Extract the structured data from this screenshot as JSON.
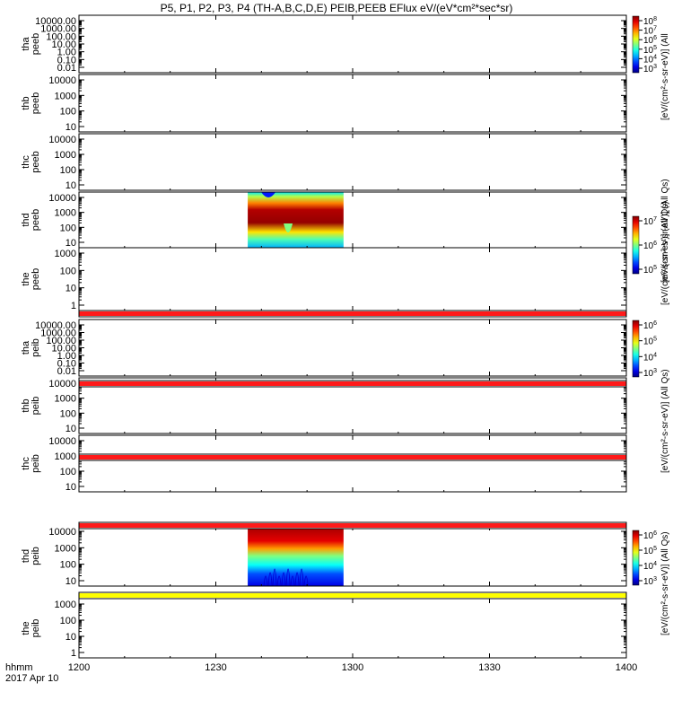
{
  "title": "P5, P1, P2, P3, P4 (TH-A,B,C,D,E) PEIB,PEEB EFlux eV/(eV*cm²*sec*sr)",
  "footer": {
    "line1": "hhmm",
    "line2": "2017 Apr 10"
  },
  "colorbar_labels": [
    "[eV/(cm²-s-sr-eV)] (All",
    "[eV/(cm²-s-sr-eV)] (All Qs)",
    "[eV/(cm²-s-sr-eV)] (All Qs)",
    "[eV/(cm²-s-sr-eV)] (All Qs)",
    "[eV/(cm²-s-sr-eV)] (All Qs)"
  ],
  "chart_data": {
    "type": "heatmap",
    "x": {
      "label": "hhmm",
      "range": [
        "1200",
        "1400"
      ],
      "ticks": [
        "1200",
        "1230",
        "1300",
        "1330",
        "1400"
      ]
    },
    "panels": [
      {
        "name": [
          "tha",
          "peeb"
        ],
        "yticks": [
          "10000.00",
          "1000.00",
          "100.00",
          "10.00",
          "1.00",
          "0.10",
          "0.01"
        ],
        "ylog": true,
        "data_interval": null
      },
      {
        "name": [
          "thb",
          "peeb"
        ],
        "yticks": [
          "10000",
          "1000",
          "100",
          "10"
        ],
        "ylog": true,
        "data_interval": null
      },
      {
        "name": [
          "thc",
          "peeb"
        ],
        "yticks": [
          "10000",
          "1000",
          "100",
          "10"
        ],
        "ylog": true,
        "data_interval": null
      },
      {
        "name": [
          "thd",
          "peeb"
        ],
        "yticks": [
          "10000",
          "1000",
          "100",
          "10"
        ],
        "ylog": true,
        "data_interval": [
          "1237",
          "1258"
        ]
      },
      {
        "name": [
          "the",
          "peeb"
        ],
        "yticks": [
          "1000",
          "100",
          "10",
          "1"
        ],
        "ylog": true,
        "data_interval": null
      },
      {
        "name": [
          "tha",
          "peib"
        ],
        "yticks": [
          "10000.00",
          "1000.00",
          "100.00",
          "10.00",
          "1.00",
          "0.10",
          "0.01"
        ],
        "ylog": true,
        "data_interval": null
      },
      {
        "name": [
          "thb",
          "peib"
        ],
        "yticks": [
          "10000",
          "1000",
          "100",
          "10"
        ],
        "ylog": true,
        "data_interval": null
      },
      {
        "name": [
          "thc",
          "peib"
        ],
        "yticks": [
          "10000",
          "1000",
          "100",
          "10"
        ],
        "ylog": true,
        "data_interval": null
      },
      {
        "name": [
          "thd",
          "peib"
        ],
        "yticks": [
          "10000",
          "1000",
          "100",
          "10"
        ],
        "ylog": true,
        "data_interval": [
          "1237",
          "1258"
        ]
      },
      {
        "name": [
          "the",
          "peib"
        ],
        "yticks": [
          "1000",
          "100",
          "10",
          "1"
        ],
        "ylog": true,
        "data_interval": null
      }
    ],
    "colorbars": [
      {
        "panels": [
          0,
          1
        ],
        "ticks": [
          "10^8",
          "10^7",
          "10^6",
          "10^5",
          "10^4",
          "10^3"
        ]
      },
      {
        "panels": [
          2,
          3
        ],
        "ticks": [
          "10^7",
          "10^6",
          "10^5"
        ]
      },
      {
        "panels": [
          4,
          5
        ],
        "ticks": [
          "10^6",
          "10^5",
          "10^4",
          "10^3"
        ]
      },
      {
        "panels": [
          6,
          7
        ],
        "ticks": []
      },
      {
        "panels": [
          8,
          9
        ],
        "ticks": [
          "10^6",
          "10^5",
          "10^4",
          "10^3"
        ]
      }
    ],
    "flag_bars": [
      {
        "after_panel": 4,
        "color": "#ff1a1a"
      },
      {
        "after_panel": 5,
        "color": "#ff1a1a"
      },
      {
        "after_panel": 6,
        "color": "#ff1a1a"
      },
      {
        "after_panel": 7,
        "color": "#ff1a1a"
      },
      {
        "after_panel": 8,
        "color": "#ffff00"
      }
    ]
  }
}
